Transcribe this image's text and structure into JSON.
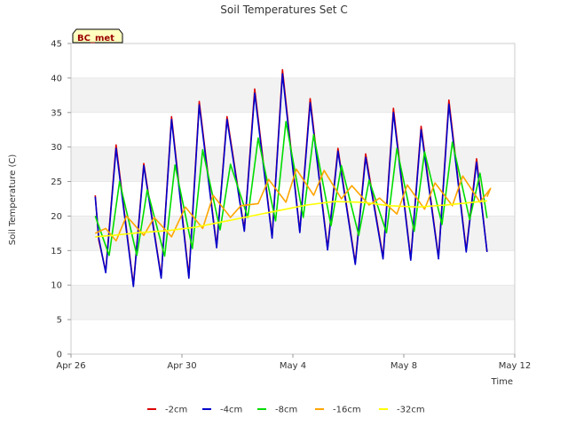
{
  "chart_data": {
    "type": "line",
    "title": "Soil Temperatures Set C",
    "xlabel": "Time",
    "ylabel": "Soil Temperature (C)",
    "badge": "BC_met",
    "xlim": [
      "2024-04-26",
      "2024-05-12"
    ],
    "ylim": [
      0,
      45
    ],
    "x_ticks": [
      {
        "date": "2024-04-26",
        "label": "Apr 26"
      },
      {
        "date": "2024-04-30",
        "label": "Apr 30"
      },
      {
        "date": "2024-05-04",
        "label": "May 4"
      },
      {
        "date": "2024-05-08",
        "label": "May 8"
      },
      {
        "date": "2024-05-12",
        "label": "May 12"
      }
    ],
    "y_ticks": [
      0,
      5,
      10,
      15,
      20,
      25,
      30,
      35,
      40,
      45
    ],
    "grid": "horizontal bands",
    "legend_position": "bottom",
    "series": [
      {
        "name": "-2cm",
        "color": "#dd0000",
        "points": [
          [
            "2024-04-26 21:00",
            23.0
          ],
          [
            "2024-04-27 00:00",
            16.5
          ],
          [
            "2024-04-27 06:00",
            12.0
          ],
          [
            "2024-04-27 15:00",
            30.3
          ],
          [
            "2024-04-28 06:00",
            10.0
          ],
          [
            "2024-04-28 15:00",
            27.6
          ],
          [
            "2024-04-29 06:00",
            11.2
          ],
          [
            "2024-04-29 15:00",
            34.4
          ],
          [
            "2024-04-30 06:00",
            11.3
          ],
          [
            "2024-04-30 15:00",
            36.6
          ],
          [
            "2024-05-01 06:00",
            15.6
          ],
          [
            "2024-05-01 15:00",
            34.4
          ],
          [
            "2024-05-02 06:00",
            18.0
          ],
          [
            "2024-05-02 15:00",
            38.4
          ],
          [
            "2024-05-03 06:00",
            17.0
          ],
          [
            "2024-05-03 15:00",
            41.2
          ],
          [
            "2024-05-04 06:00",
            17.8
          ],
          [
            "2024-05-04 15:00",
            37.0
          ],
          [
            "2024-05-05 06:00",
            15.3
          ],
          [
            "2024-05-05 15:00",
            29.8
          ],
          [
            "2024-05-06 06:00",
            13.2
          ],
          [
            "2024-05-06 15:00",
            29.0
          ],
          [
            "2024-05-07 06:00",
            14.0
          ],
          [
            "2024-05-07 15:00",
            35.6
          ],
          [
            "2024-05-08 06:00",
            13.8
          ],
          [
            "2024-05-08 15:00",
            33.0
          ],
          [
            "2024-05-09 06:00",
            14.0
          ],
          [
            "2024-05-09 15:00",
            36.8
          ],
          [
            "2024-05-10 06:00",
            15.0
          ],
          [
            "2024-05-10 15:00",
            28.3
          ],
          [
            "2024-05-11 00:00",
            14.8
          ]
        ]
      },
      {
        "name": "-4cm",
        "color": "#0000cc",
        "points": [
          [
            "2024-04-26 21:00",
            22.8
          ],
          [
            "2024-04-27 00:00",
            16.8
          ],
          [
            "2024-04-27 06:00",
            11.8
          ],
          [
            "2024-04-27 15:00",
            29.8
          ],
          [
            "2024-04-28 06:00",
            9.8
          ],
          [
            "2024-04-28 15:00",
            27.3
          ],
          [
            "2024-04-29 06:00",
            11.0
          ],
          [
            "2024-04-29 15:00",
            34.0
          ],
          [
            "2024-04-30 06:00",
            11.0
          ],
          [
            "2024-04-30 15:00",
            36.1
          ],
          [
            "2024-05-01 06:00",
            15.4
          ],
          [
            "2024-05-01 15:00",
            34.0
          ],
          [
            "2024-05-02 06:00",
            17.8
          ],
          [
            "2024-05-02 15:00",
            37.8
          ],
          [
            "2024-05-03 06:00",
            16.8
          ],
          [
            "2024-05-03 15:00",
            40.6
          ],
          [
            "2024-05-04 06:00",
            17.6
          ],
          [
            "2024-05-04 15:00",
            36.4
          ],
          [
            "2024-05-05 06:00",
            15.1
          ],
          [
            "2024-05-05 15:00",
            29.4
          ],
          [
            "2024-05-06 06:00",
            13.0
          ],
          [
            "2024-05-06 15:00",
            28.5
          ],
          [
            "2024-05-07 06:00",
            13.8
          ],
          [
            "2024-05-07 15:00",
            35.0
          ],
          [
            "2024-05-08 06:00",
            13.6
          ],
          [
            "2024-05-08 15:00",
            32.5
          ],
          [
            "2024-05-09 06:00",
            13.8
          ],
          [
            "2024-05-09 15:00",
            36.2
          ],
          [
            "2024-05-10 06:00",
            14.8
          ],
          [
            "2024-05-10 15:00",
            27.8
          ],
          [
            "2024-05-11 00:00",
            14.8
          ]
        ]
      },
      {
        "name": "-8cm",
        "color": "#00dd00",
        "points": [
          [
            "2024-04-26 21:00",
            20.0
          ],
          [
            "2024-04-27 09:00",
            14.3
          ],
          [
            "2024-04-27 18:00",
            25.0
          ],
          [
            "2024-04-28 09:00",
            14.3
          ],
          [
            "2024-04-28 18:00",
            23.8
          ],
          [
            "2024-04-29 09:00",
            14.2
          ],
          [
            "2024-04-29 18:00",
            27.4
          ],
          [
            "2024-04-30 09:00",
            15.3
          ],
          [
            "2024-04-30 18:00",
            29.6
          ],
          [
            "2024-05-01 09:00",
            18.0
          ],
          [
            "2024-05-01 18:00",
            27.5
          ],
          [
            "2024-05-02 09:00",
            19.8
          ],
          [
            "2024-05-02 18:00",
            31.3
          ],
          [
            "2024-05-03 09:00",
            19.3
          ],
          [
            "2024-05-03 18:00",
            33.7
          ],
          [
            "2024-05-04 09:00",
            19.8
          ],
          [
            "2024-05-04 18:00",
            31.8
          ],
          [
            "2024-05-05 09:00",
            18.6
          ],
          [
            "2024-05-05 18:00",
            27.3
          ],
          [
            "2024-05-06 09:00",
            17.2
          ],
          [
            "2024-05-06 18:00",
            25.2
          ],
          [
            "2024-05-07 09:00",
            17.6
          ],
          [
            "2024-05-07 18:00",
            29.8
          ],
          [
            "2024-05-08 09:00",
            17.8
          ],
          [
            "2024-05-08 18:00",
            29.3
          ],
          [
            "2024-05-09 09:00",
            18.8
          ],
          [
            "2024-05-09 18:00",
            30.7
          ],
          [
            "2024-05-10 09:00",
            19.5
          ],
          [
            "2024-05-10 18:00",
            26.2
          ],
          [
            "2024-05-11 00:00",
            19.7
          ]
        ]
      },
      {
        "name": "-16cm",
        "color": "#ffa500",
        "points": [
          [
            "2024-04-26 21:00",
            17.5
          ],
          [
            "2024-04-27 06:00",
            18.2
          ],
          [
            "2024-04-27 15:00",
            16.4
          ],
          [
            "2024-04-28 00:00",
            20.0
          ],
          [
            "2024-04-28 15:00",
            17.2
          ],
          [
            "2024-04-29 00:00",
            19.8
          ],
          [
            "2024-04-29 15:00",
            17.0
          ],
          [
            "2024-04-30 03:00",
            21.3
          ],
          [
            "2024-04-30 18:00",
            18.2
          ],
          [
            "2024-05-01 03:00",
            23.0
          ],
          [
            "2024-05-01 18:00",
            19.8
          ],
          [
            "2024-05-02 03:00",
            21.5
          ],
          [
            "2024-05-02 18:00",
            21.8
          ],
          [
            "2024-05-03 03:00",
            25.3
          ],
          [
            "2024-05-03 18:00",
            22.0
          ],
          [
            "2024-05-04 03:00",
            26.8
          ],
          [
            "2024-05-04 18:00",
            23.0
          ],
          [
            "2024-05-05 03:00",
            26.6
          ],
          [
            "2024-05-05 18:00",
            22.5
          ],
          [
            "2024-05-06 03:00",
            24.4
          ],
          [
            "2024-05-06 18:00",
            21.6
          ],
          [
            "2024-05-07 03:00",
            22.6
          ],
          [
            "2024-05-07 18:00",
            20.3
          ],
          [
            "2024-05-08 03:00",
            24.5
          ],
          [
            "2024-05-08 18:00",
            21.0
          ],
          [
            "2024-05-09 03:00",
            24.8
          ],
          [
            "2024-05-09 18:00",
            21.5
          ],
          [
            "2024-05-10 03:00",
            25.8
          ],
          [
            "2024-05-10 18:00",
            22.0
          ],
          [
            "2024-05-11 03:00",
            24.0
          ],
          [
            "2024-05-11 00:00",
            22.8
          ]
        ]
      },
      {
        "name": "-32cm",
        "color": "#ffff00",
        "points": [
          [
            "2024-04-26 21:00",
            17.0
          ],
          [
            "2024-04-27 12:00",
            17.2
          ],
          [
            "2024-04-28 12:00",
            17.6
          ],
          [
            "2024-04-29 12:00",
            17.9
          ],
          [
            "2024-04-30 12:00",
            18.4
          ],
          [
            "2024-05-01 12:00",
            19.2
          ],
          [
            "2024-05-02 12:00",
            20.0
          ],
          [
            "2024-05-03 12:00",
            20.8
          ],
          [
            "2024-05-04 12:00",
            21.6
          ],
          [
            "2024-05-05 12:00",
            22.1
          ],
          [
            "2024-05-06 12:00",
            22.0
          ],
          [
            "2024-05-07 12:00",
            21.5
          ],
          [
            "2024-05-08 12:00",
            21.3
          ],
          [
            "2024-05-09 12:00",
            21.6
          ],
          [
            "2024-05-10 12:00",
            22.0
          ],
          [
            "2024-05-11 00:00",
            22.2
          ]
        ]
      }
    ]
  }
}
